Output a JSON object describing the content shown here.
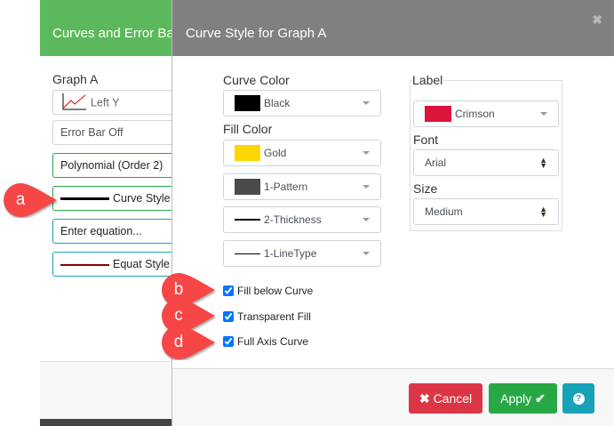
{
  "background_panel": {
    "title": "Curves and Error Ba",
    "graph_label": "Graph A",
    "axis": "Left Y",
    "error_bar": "Error Bar Off",
    "fit": "Polynomial (Order 2)",
    "curve_style": "Curve Style",
    "equation_placeholder": "Enter equation...",
    "equat_style": "Equat Style"
  },
  "modal": {
    "title": "Curve Style for Graph A",
    "close_icon": "close-icon",
    "curve_color": {
      "label": "Curve Color",
      "value": "Black",
      "swatch": "#000000"
    },
    "fill_color": {
      "label": "Fill Color",
      "value": "Gold",
      "swatch": "#ffd700"
    },
    "pattern": {
      "value": "1-Pattern",
      "swatch": "#4a4a4a"
    },
    "thickness": {
      "value": "2-Thickness"
    },
    "linetype": {
      "value": "1-LineType"
    },
    "label_group": {
      "legend": "Label",
      "color": "Crimson",
      "swatch": "#dc143c",
      "font_label": "Font",
      "font": "Arial",
      "size_label": "Size",
      "size": "Medium"
    },
    "checkboxes": [
      {
        "label": "Fill below Curve",
        "checked": true
      },
      {
        "label": "Transparent Fill",
        "checked": true
      },
      {
        "label": "Full Axis Curve",
        "checked": true
      }
    ],
    "buttons": {
      "cancel": "Cancel",
      "apply": "Apply",
      "help_icon": "question-circle-icon"
    }
  },
  "callouts": [
    "a",
    "b",
    "c",
    "d"
  ],
  "colors": {
    "header_green": "#5cb85c",
    "modal_header": "#808080",
    "cancel": "#dc3545",
    "apply": "#28a745",
    "help": "#17a2b8",
    "callout": "#f64646"
  }
}
